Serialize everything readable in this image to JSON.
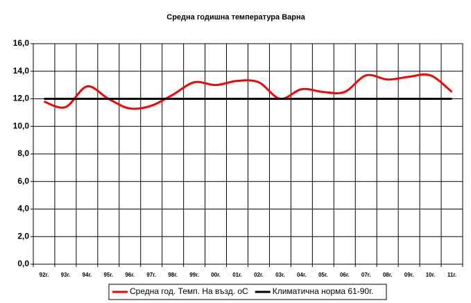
{
  "chart_data": {
    "type": "line",
    "title": "Средна годишна температура Варна",
    "categories": [
      "92г.",
      "93г.",
      "94г.",
      "95г.",
      "96г.",
      "97г.",
      "98г.",
      "99г.",
      "00г.",
      "01г.",
      "02г.",
      "03г.",
      "04г.",
      "05г.",
      "06г.",
      "07г.",
      "08г.",
      "09г.",
      "10г.",
      "11г."
    ],
    "series": [
      {
        "name": "Средна год. Темп. На възд. оС",
        "color": "#ff0000",
        "values": [
          11.8,
          11.4,
          12.9,
          12.0,
          11.3,
          11.5,
          12.3,
          13.2,
          13.0,
          13.3,
          13.2,
          12.0,
          12.7,
          12.5,
          12.5,
          13.7,
          13.4,
          13.6,
          13.7,
          12.5
        ]
      },
      {
        "name": "Климатична норма 61-90г.",
        "color": "#000000",
        "values": [
          12.0,
          12.0,
          12.0,
          12.0,
          12.0,
          12.0,
          12.0,
          12.0,
          12.0,
          12.0,
          12.0,
          12.0,
          12.0,
          12.0,
          12.0,
          12.0,
          12.0,
          12.0,
          12.0,
          12.0
        ]
      }
    ],
    "ylim": [
      0,
      16
    ],
    "yticks": [
      {
        "value": 0,
        "label": "0,0"
      },
      {
        "value": 2,
        "label": "2,0"
      },
      {
        "value": 4,
        "label": "4,0"
      },
      {
        "value": 6,
        "label": "6,0"
      },
      {
        "value": 8,
        "label": "8,0"
      },
      {
        "value": 10,
        "label": "10,0"
      },
      {
        "value": 12,
        "label": "12,0"
      },
      {
        "value": 14,
        "label": "14,0"
      },
      {
        "value": 16,
        "label": "16,0"
      }
    ],
    "grid": true,
    "smooth": true,
    "legend": "bottom"
  }
}
